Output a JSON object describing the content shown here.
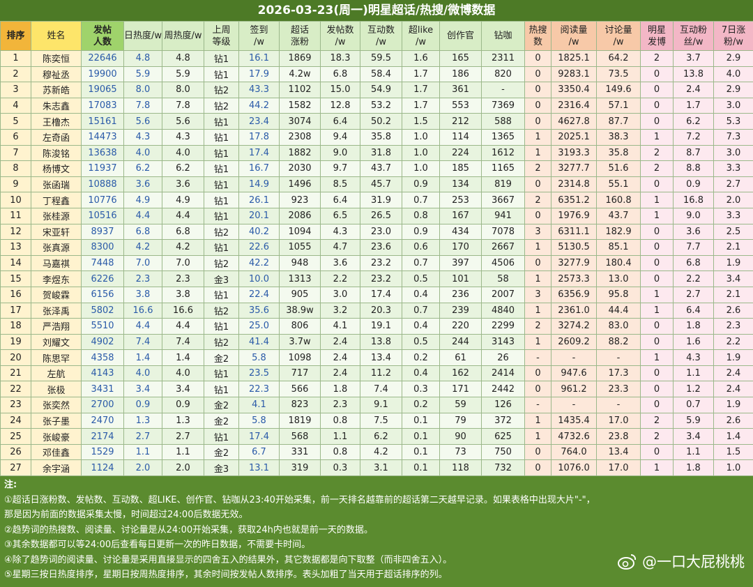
{
  "title": "2026-03-23(周一)明星超话/热搜/微博数据",
  "table": {
    "header": [
      "排序",
      "姓名",
      "发帖\n人数",
      "日热度/w",
      "周热度/w",
      "上周\n等级",
      "签到\n/w",
      "超话\n涨粉",
      "发帖数\n/w",
      "互动数\n/w",
      "超like\n/w",
      "创作官",
      "钻咖",
      "热搜\n数",
      "阅读量\n/w",
      "讨论量\n/w",
      "明星\n发博",
      "互动粉\n丝/w",
      "7日涨\n粉/w"
    ],
    "rows": [
      [
        "1",
        "陈奕恒",
        "22646",
        "4.8",
        "4.8",
        "钻1",
        "16.1",
        "1869",
        "18.3",
        "59.5",
        "1.6",
        "165",
        "2311",
        "0",
        "1825.1",
        "64.2",
        "2",
        "3.7",
        "2.9"
      ],
      [
        "2",
        "穆祉丞",
        "19900",
        "5.9",
        "5.9",
        "钻1",
        "17.9",
        "4.2w",
        "6.8",
        "58.4",
        "1.7",
        "186",
        "820",
        "0",
        "9283.1",
        "73.5",
        "0",
        "13.8",
        "4.0"
      ],
      [
        "3",
        "苏新皓",
        "19065",
        "8.0",
        "8.0",
        "钻2",
        "43.3",
        "1102",
        "15.0",
        "54.9",
        "1.7",
        "361",
        "-",
        "0",
        "3350.4",
        "149.6",
        "0",
        "2.4",
        "2.9"
      ],
      [
        "4",
        "朱志鑫",
        "17083",
        "7.8",
        "7.8",
        "钻2",
        "44.2",
        "1582",
        "12.8",
        "53.2",
        "1.7",
        "553",
        "7369",
        "0",
        "2316.4",
        "57.1",
        "0",
        "1.7",
        "3.0"
      ],
      [
        "5",
        "王橹杰",
        "15161",
        "5.6",
        "5.6",
        "钻1",
        "23.4",
        "3074",
        "6.4",
        "50.2",
        "1.5",
        "212",
        "588",
        "0",
        "4627.8",
        "87.7",
        "0",
        "6.2",
        "5.3"
      ],
      [
        "6",
        "左奇函",
        "14473",
        "4.3",
        "4.3",
        "钻1",
        "17.8",
        "2308",
        "9.4",
        "35.8",
        "1.0",
        "114",
        "1365",
        "1",
        "2025.1",
        "38.3",
        "1",
        "7.2",
        "7.3"
      ],
      [
        "7",
        "陈浚铭",
        "13638",
        "4.0",
        "4.0",
        "钻1",
        "17.4",
        "1882",
        "9.0",
        "31.8",
        "1.0",
        "224",
        "1612",
        "1",
        "3193.3",
        "35.8",
        "2",
        "8.7",
        "3.0"
      ],
      [
        "8",
        "杨博文",
        "11937",
        "6.2",
        "6.2",
        "钻1",
        "16.7",
        "2030",
        "9.7",
        "43.7",
        "1.0",
        "185",
        "1165",
        "2",
        "3277.7",
        "51.6",
        "2",
        "8.8",
        "3.3"
      ],
      [
        "9",
        "张函瑞",
        "10888",
        "3.6",
        "3.6",
        "钻1",
        "14.9",
        "1496",
        "8.5",
        "45.7",
        "0.9",
        "134",
        "819",
        "0",
        "2314.8",
        "55.1",
        "0",
        "0.9",
        "2.7"
      ],
      [
        "10",
        "丁程鑫",
        "10776",
        "4.9",
        "4.9",
        "钻1",
        "26.1",
        "923",
        "6.4",
        "31.9",
        "0.7",
        "253",
        "3667",
        "2",
        "6351.2",
        "160.8",
        "1",
        "16.8",
        "2.0"
      ],
      [
        "11",
        "张桂源",
        "10516",
        "4.4",
        "4.4",
        "钻1",
        "20.1",
        "2086",
        "6.5",
        "26.5",
        "0.8",
        "167",
        "941",
        "0",
        "1976.9",
        "43.7",
        "1",
        "9.0",
        "3.3"
      ],
      [
        "12",
        "宋亚轩",
        "8937",
        "6.8",
        "6.8",
        "钻2",
        "40.2",
        "1094",
        "4.3",
        "23.0",
        "0.9",
        "434",
        "7078",
        "3",
        "6311.1",
        "182.9",
        "0",
        "3.6",
        "2.5"
      ],
      [
        "13",
        "张真源",
        "8300",
        "4.2",
        "4.2",
        "钻1",
        "22.6",
        "1055",
        "4.7",
        "23.6",
        "0.6",
        "170",
        "2667",
        "1",
        "5130.5",
        "85.1",
        "0",
        "7.7",
        "2.1"
      ],
      [
        "14",
        "马嘉祺",
        "7448",
        "7.0",
        "7.0",
        "钻2",
        "42.2",
        "948",
        "3.6",
        "23.2",
        "0.7",
        "397",
        "4506",
        "0",
        "3277.9",
        "180.4",
        "0",
        "6.8",
        "1.9"
      ],
      [
        "15",
        "李煜东",
        "6226",
        "2.3",
        "2.3",
        "金3",
        "10.0",
        "1313",
        "2.2",
        "23.2",
        "0.5",
        "101",
        "58",
        "1",
        "2573.3",
        "13.0",
        "0",
        "2.2",
        "3.4"
      ],
      [
        "16",
        "贺峻霖",
        "6156",
        "3.8",
        "3.8",
        "钻1",
        "22.4",
        "905",
        "3.0",
        "17.4",
        "0.4",
        "236",
        "2007",
        "3",
        "6356.9",
        "95.8",
        "1",
        "2.7",
        "2.1"
      ],
      [
        "17",
        "张泽禹",
        "5802",
        "16.6",
        "16.6",
        "钻2",
        "35.6",
        "38.9w",
        "3.2",
        "20.3",
        "0.7",
        "239",
        "4840",
        "1",
        "2361.0",
        "44.4",
        "1",
        "6.4",
        "2.6"
      ],
      [
        "18",
        "严浩翔",
        "5510",
        "4.4",
        "4.4",
        "钻1",
        "25.0",
        "806",
        "4.1",
        "19.1",
        "0.4",
        "220",
        "2299",
        "2",
        "3274.2",
        "83.0",
        "0",
        "1.8",
        "2.3"
      ],
      [
        "19",
        "刘耀文",
        "4902",
        "7.4",
        "7.4",
        "钻2",
        "41.4",
        "3.7w",
        "2.4",
        "13.8",
        "0.5",
        "244",
        "3143",
        "1",
        "2609.2",
        "88.2",
        "0",
        "1.6",
        "2.2"
      ],
      [
        "20",
        "陈思罕",
        "4358",
        "1.4",
        "1.4",
        "金2",
        "5.8",
        "1098",
        "2.4",
        "13.4",
        "0.2",
        "61",
        "26",
        "-",
        "-",
        "-",
        "1",
        "4.3",
        "1.9"
      ],
      [
        "21",
        "左航",
        "4143",
        "4.0",
        "4.0",
        "钻1",
        "23.5",
        "717",
        "2.4",
        "11.2",
        "0.4",
        "162",
        "2414",
        "0",
        "947.6",
        "17.3",
        "0",
        "1.1",
        "2.4"
      ],
      [
        "22",
        "张极",
        "3431",
        "3.4",
        "3.4",
        "钻1",
        "22.3",
        "566",
        "1.8",
        "7.4",
        "0.3",
        "171",
        "2442",
        "0",
        "961.2",
        "23.3",
        "0",
        "1.2",
        "2.4"
      ],
      [
        "23",
        "张奕然",
        "2700",
        "0.9",
        "0.9",
        "金2",
        "4.1",
        "823",
        "2.3",
        "9.1",
        "0.2",
        "59",
        "126",
        "-",
        "-",
        "-",
        "0",
        "0.7",
        "1.9"
      ],
      [
        "24",
        "张子墨",
        "2470",
        "1.3",
        "1.3",
        "金2",
        "5.8",
        "1819",
        "0.8",
        "7.5",
        "0.1",
        "79",
        "372",
        "1",
        "1435.4",
        "17.0",
        "2",
        "5.9",
        "2.6"
      ],
      [
        "25",
        "张峻豪",
        "2174",
        "2.7",
        "2.7",
        "钻1",
        "17.4",
        "568",
        "1.1",
        "6.2",
        "0.1",
        "90",
        "625",
        "1",
        "4732.6",
        "23.8",
        "2",
        "3.4",
        "1.4"
      ],
      [
        "26",
        "邓佳鑫",
        "1529",
        "1.1",
        "1.1",
        "金2",
        "6.7",
        "331",
        "0.8",
        "4.2",
        "0.1",
        "73",
        "750",
        "0",
        "764.0",
        "13.4",
        "0",
        "1.1",
        "1.5"
      ],
      [
        "27",
        "余宇涵",
        "1124",
        "2.0",
        "2.0",
        "金3",
        "13.1",
        "319",
        "0.3",
        "3.1",
        "0.1",
        "118",
        "732",
        "0",
        "1076.0",
        "17.0",
        "1",
        "1.8",
        "1.0"
      ]
    ]
  },
  "notes": {
    "heading": "注:",
    "lines": [
      "①超话日涨粉数、发帖数、互动数、超LIKE、创作官、钻咖从23:40开始采集，前一天排名越靠前的超话第二天越早记录。如果表格中出现大片\"-\"，",
      "那是因为前面的数据采集太慢，时间超过24:00后数据无效。",
      "②趋势词的热搜数、阅读量、讨论量是从24:00开始采集，获取24h内也就是前一天的数据。",
      "③其余数据都可以等24:00后查看每日更新一次的昨日数据，不需要卡时间。",
      "④除了趋势词的阅读量、讨论量是采用直接显示的四舍五入的结果外，其它数据都是向下取整（而非四舍五入）。",
      "⑤星期三按日热度排序，星期日按周热度排序，其余时间按发帖人数排序。表头加粗了当天用于超话排序的列。"
    ]
  },
  "watermark": "@一口大屁桃桃"
}
